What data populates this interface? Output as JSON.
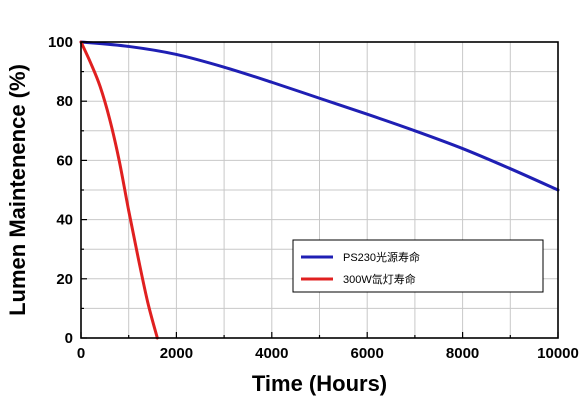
{
  "chart_data": {
    "type": "line",
    "xlabel": "Time (Hours)",
    "ylabel": "Lumen Maintenence (%)",
    "xlim": [
      0,
      10000
    ],
    "ylim": [
      0,
      100
    ],
    "x_ticks": [
      0,
      2000,
      4000,
      6000,
      8000,
      10000
    ],
    "y_ticks": [
      0,
      20,
      40,
      60,
      80,
      100
    ],
    "x_tick_labels": [
      "0",
      "2000",
      "4000",
      "6000",
      "8000",
      "10000"
    ],
    "y_tick_labels": [
      "0",
      "20",
      "40",
      "60",
      "80",
      "100"
    ],
    "grid": true,
    "legend_position": "lower-right",
    "series": [
      {
        "name": "PS230光源寿命",
        "color": "#1f1fb4",
        "x": [
          0,
          1000,
          2000,
          3000,
          4000,
          5000,
          6000,
          7000,
          8000,
          9000,
          10000
        ],
        "y": [
          100,
          98.5,
          95.8,
          91.5,
          86.4,
          81.0,
          75.6,
          70.0,
          64.0,
          57.2,
          50.0
        ]
      },
      {
        "name": "300W氙灯寿命",
        "color": "#e02020",
        "x": [
          0,
          200,
          400,
          600,
          800,
          1000,
          1200,
          1400,
          1600
        ],
        "y": [
          100,
          93,
          85,
          74,
          60,
          43,
          27,
          12,
          0
        ]
      }
    ]
  }
}
